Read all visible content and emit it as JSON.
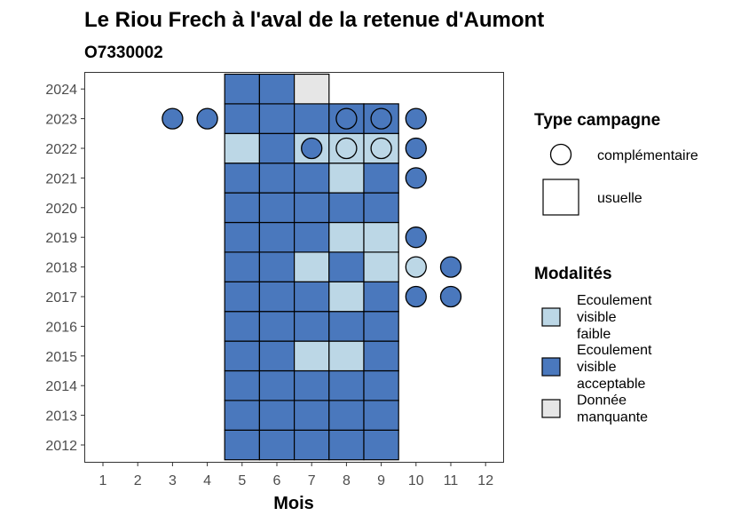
{
  "chart_data": {
    "type": "heatmap",
    "title": "Le Riou Frech à l'aval de la retenue d'Aumont",
    "subtitle": "O7330002",
    "xlabel": "Mois",
    "ylabel": "",
    "x_ticks": [
      1,
      2,
      3,
      4,
      5,
      6,
      7,
      8,
      9,
      10,
      11,
      12
    ],
    "y_ticks": [
      2012,
      2013,
      2014,
      2015,
      2016,
      2017,
      2018,
      2019,
      2020,
      2021,
      2022,
      2023,
      2024
    ],
    "grid": false,
    "colors": {
      "faible": "#bcd7e6",
      "acceptable": "#4a78bd",
      "manquante": "#e6e6e6"
    },
    "legend_type": {
      "title": "Type campagne",
      "entries": [
        {
          "key": "complementaire",
          "label": "complémentaire",
          "shape": "circle"
        },
        {
          "key": "usuelle",
          "label": "usuelle",
          "shape": "square"
        }
      ]
    },
    "legend_modalites": {
      "title": "Modalités",
      "entries": [
        {
          "key": "faible",
          "lines": [
            "Ecoulement",
            "visible",
            "faible"
          ]
        },
        {
          "key": "acceptable",
          "lines": [
            "Ecoulement",
            "visible",
            "acceptable"
          ]
        },
        {
          "key": "manquante",
          "lines": [
            "Donnée",
            "manquante"
          ]
        }
      ]
    },
    "usuelle": [
      {
        "year": 2012,
        "months": {
          "5": "acceptable",
          "6": "acceptable",
          "7": "acceptable",
          "8": "acceptable",
          "9": "acceptable"
        }
      },
      {
        "year": 2013,
        "months": {
          "5": "acceptable",
          "6": "acceptable",
          "7": "acceptable",
          "8": "acceptable",
          "9": "acceptable"
        }
      },
      {
        "year": 2014,
        "months": {
          "5": "acceptable",
          "6": "acceptable",
          "7": "acceptable",
          "8": "acceptable",
          "9": "acceptable"
        }
      },
      {
        "year": 2015,
        "months": {
          "5": "acceptable",
          "6": "acceptable",
          "7": "faible",
          "8": "faible",
          "9": "acceptable"
        }
      },
      {
        "year": 2016,
        "months": {
          "5": "acceptable",
          "6": "acceptable",
          "7": "acceptable",
          "8": "acceptable",
          "9": "acceptable"
        }
      },
      {
        "year": 2017,
        "months": {
          "5": "acceptable",
          "6": "acceptable",
          "7": "acceptable",
          "8": "faible",
          "9": "acceptable"
        }
      },
      {
        "year": 2018,
        "months": {
          "5": "acceptable",
          "6": "acceptable",
          "7": "faible",
          "8": "acceptable",
          "9": "faible"
        }
      },
      {
        "year": 2019,
        "months": {
          "5": "acceptable",
          "6": "acceptable",
          "7": "acceptable",
          "8": "faible",
          "9": "faible"
        }
      },
      {
        "year": 2020,
        "months": {
          "5": "acceptable",
          "6": "acceptable",
          "7": "acceptable",
          "8": "acceptable",
          "9": "acceptable"
        }
      },
      {
        "year": 2021,
        "months": {
          "5": "acceptable",
          "6": "acceptable",
          "7": "acceptable",
          "8": "faible",
          "9": "acceptable"
        }
      },
      {
        "year": 2022,
        "months": {
          "5": "faible",
          "6": "acceptable",
          "7": "faible",
          "8": "faible",
          "9": "faible"
        }
      },
      {
        "year": 2023,
        "months": {
          "5": "acceptable",
          "6": "acceptable",
          "7": "acceptable",
          "8": "acceptable",
          "9": "acceptable"
        }
      },
      {
        "year": 2024,
        "months": {
          "5": "acceptable",
          "6": "acceptable",
          "7": "manquante"
        }
      }
    ],
    "complementaire": [
      {
        "year": 2017,
        "month": 10,
        "value": "acceptable"
      },
      {
        "year": 2017,
        "month": 11,
        "value": "acceptable"
      },
      {
        "year": 2018,
        "month": 10,
        "value": "faible"
      },
      {
        "year": 2018,
        "month": 11,
        "value": "acceptable"
      },
      {
        "year": 2019,
        "month": 10,
        "value": "acceptable"
      },
      {
        "year": 2021,
        "month": 10,
        "value": "acceptable"
      },
      {
        "year": 2022,
        "month": 7,
        "value": "acceptable"
      },
      {
        "year": 2022,
        "month": 8,
        "value": "faible"
      },
      {
        "year": 2022,
        "month": 9,
        "value": "faible"
      },
      {
        "year": 2022,
        "month": 10,
        "value": "acceptable"
      },
      {
        "year": 2023,
        "month": 3,
        "value": "acceptable"
      },
      {
        "year": 2023,
        "month": 4,
        "value": "acceptable"
      },
      {
        "year": 2023,
        "month": 8,
        "value": "acceptable"
      },
      {
        "year": 2023,
        "month": 9,
        "value": "acceptable"
      },
      {
        "year": 2023,
        "month": 10,
        "value": "acceptable"
      }
    ]
  }
}
